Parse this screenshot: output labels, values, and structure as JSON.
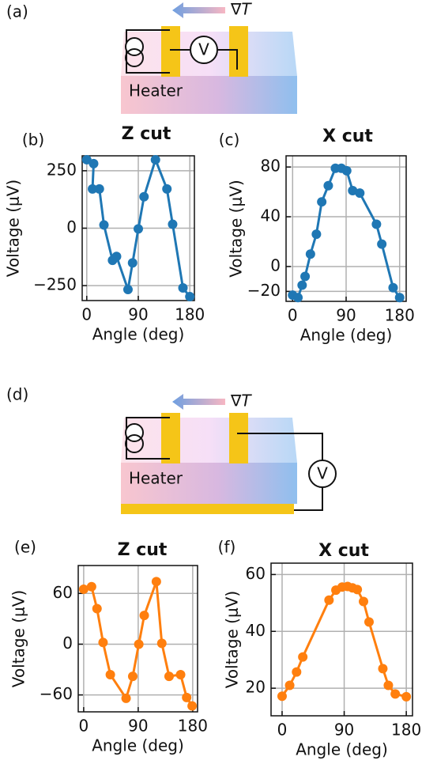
{
  "diagrams": [
    {
      "label": "(a)",
      "gradient_label": "∇T",
      "meter_label": "V",
      "heater_label": "Heater"
    },
    {
      "label": "(d)",
      "gradient_label": "∇T",
      "meter_label": "V",
      "heater_label": "Heater"
    }
  ],
  "chart_data": [
    {
      "type": "line",
      "panel_label": "(b)",
      "title": "Z cut",
      "xlabel": "Angle (deg)",
      "ylabel": "Voltage (μV)",
      "color": "#1f77b4",
      "grid": true,
      "x": [
        0,
        12,
        10,
        22,
        30,
        45,
        52,
        72,
        80,
        90,
        100,
        120,
        140,
        150,
        168,
        180
      ],
      "values": [
        298,
        281,
        171,
        171,
        14,
        -140,
        -123,
        -267,
        -151,
        -3,
        137,
        298,
        171,
        17,
        -260,
        -298
      ],
      "xlim": [
        -8,
        188
      ],
      "xticks": [
        0,
        90,
        180
      ],
      "ylim": [
        -315,
        315
      ],
      "yticks": [
        {
          "value": -250,
          "label": "−250"
        },
        0,
        250
      ]
    },
    {
      "type": "line",
      "panel_label": "(c)",
      "title": "X cut",
      "xlabel": "Angle (deg)",
      "ylabel": "Voltage (μV)",
      "color": "#1f77b4",
      "grid": true,
      "x": [
        0,
        9,
        16,
        21,
        30,
        40,
        49,
        60,
        72,
        82,
        91,
        101,
        113,
        141,
        150,
        169,
        180
      ],
      "values": [
        -23,
        -25,
        -15,
        -8,
        10,
        26,
        52,
        65,
        79,
        79,
        77,
        61,
        59,
        34,
        18,
        -17,
        -25
      ],
      "xlim": [
        -11,
        191
      ],
      "xticks": [
        0,
        90,
        180
      ],
      "ylim": [
        -28,
        89
      ],
      "yticks": [
        {
          "value": -20,
          "label": "−20"
        },
        0,
        40,
        80
      ]
    },
    {
      "type": "line",
      "panel_label": "(e)",
      "title": "Z cut",
      "xlabel": "Angle (deg)",
      "ylabel": "Voltage (μV)",
      "color": "#ff7f0e",
      "grid": true,
      "x": [
        0,
        13,
        22,
        32,
        44,
        70,
        81,
        91,
        100,
        120,
        129,
        141,
        160,
        170,
        179
      ],
      "values": [
        65,
        68,
        42,
        2,
        -36,
        -64,
        -38,
        0,
        34,
        74,
        1,
        -38,
        -36,
        -63,
        -73
      ],
      "xlim": [
        -9,
        188
      ],
      "xticks": [
        0,
        90,
        180
      ],
      "ylim": [
        -80,
        93
      ],
      "yticks": [
        {
          "value": -60,
          "label": "−60"
        },
        0,
        60
      ]
    },
    {
      "type": "line",
      "panel_label": "(f)",
      "title": "X cut",
      "xlabel": "Angle (deg)",
      "ylabel": "Voltage (μV)",
      "color": "#ff7f0e",
      "grid": true,
      "x": [
        0,
        11,
        21,
        30,
        68,
        78,
        87,
        95,
        102,
        109,
        118,
        126,
        146,
        154,
        164,
        180
      ],
      "values": [
        17.2,
        21,
        25.7,
        31,
        51,
        54.5,
        55.6,
        55.8,
        55.3,
        54.7,
        50.5,
        43.3,
        26.9,
        21,
        18,
        17
      ],
      "xlim": [
        -16,
        189
      ],
      "xticks": [
        0,
        90,
        180
      ],
      "ylim": [
        10.3,
        64
      ],
      "yticks": [
        20,
        40,
        60
      ]
    }
  ]
}
